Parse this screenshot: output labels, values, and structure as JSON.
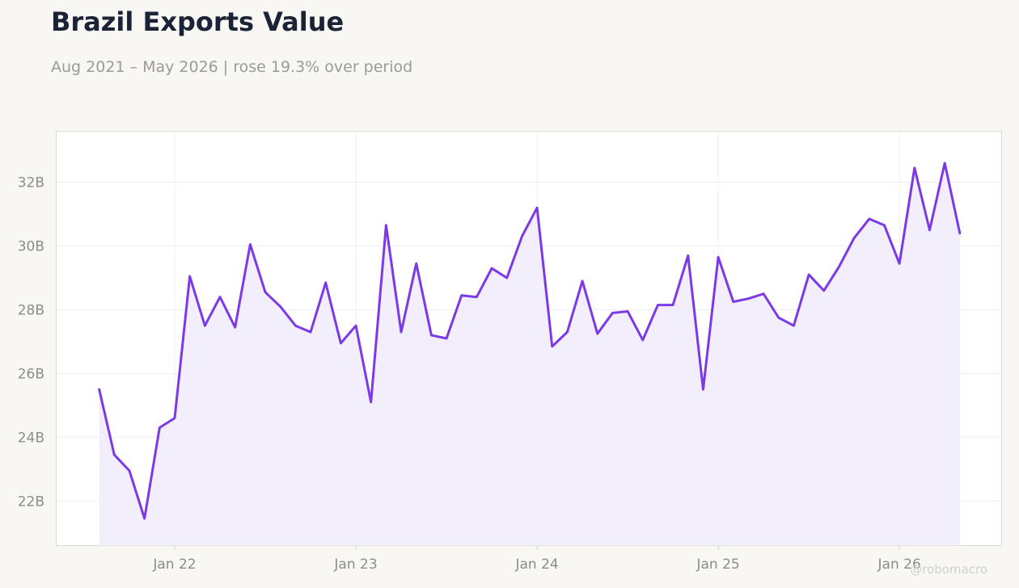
{
  "title": "Brazil Exports Value",
  "subtitle": "Aug 2021 – May 2026 | rose 19.3% over period",
  "watermark": "@robomacro",
  "colors": {
    "background": "#f8f7f4",
    "plot_background": "#ffffff",
    "line": "#7c3ae6",
    "fill": "#f1ecfc",
    "grid": "#efedf3",
    "title": "#1b2336",
    "muted": "#9a9a9a"
  },
  "chart_data": {
    "type": "area",
    "x_start": "2021-08",
    "x_end": "2026-05",
    "x_tick_labels": [
      "Jan 22",
      "Jan 23",
      "Jan 24",
      "Jan 25",
      "Jan 26"
    ],
    "x_tick_months": [
      "2022-01",
      "2023-01",
      "2024-01",
      "2025-01",
      "2026-01"
    ],
    "y_tick_labels": [
      "22B",
      "24B",
      "26B",
      "28B",
      "30B",
      "32B"
    ],
    "y_ticks": [
      22,
      24,
      26,
      28,
      30,
      32
    ],
    "ylim": [
      20.6,
      33.6
    ],
    "y_unit": "billions",
    "grid": true,
    "series": [
      {
        "values": [
          25.5,
          23.45,
          22.95,
          21.45,
          24.3,
          24.6,
          29.05,
          27.5,
          28.4,
          27.45,
          30.05,
          28.55,
          28.1,
          27.5,
          27.3,
          28.85,
          26.95,
          27.5,
          25.1,
          30.65,
          27.3,
          29.45,
          27.2,
          27.1,
          28.45,
          28.4,
          29.3,
          29.0,
          30.3,
          31.2,
          26.85,
          27.3,
          28.9,
          27.25,
          27.9,
          27.95,
          27.05,
          28.15,
          28.15,
          29.7,
          25.5,
          29.65,
          28.25,
          28.35,
          28.5,
          27.75,
          27.5,
          29.1,
          28.6,
          29.35,
          30.25,
          30.85,
          30.65,
          29.45,
          32.45,
          30.5,
          32.6,
          30.4
        ]
      }
    ]
  }
}
